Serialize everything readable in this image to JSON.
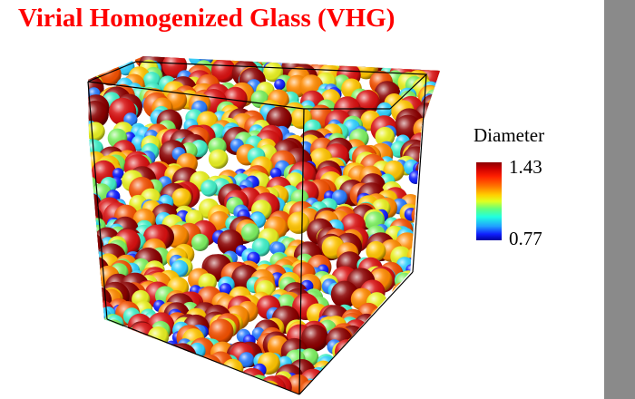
{
  "title": "Virial Homogenized Glass (VHG)",
  "legend": {
    "title": "Diameter",
    "max_label": "1.43",
    "min_label": "0.77",
    "gradient_colors": [
      "#8b0000",
      "#cc0000",
      "#ff2000",
      "#ff7000",
      "#ffd000",
      "#e0ff20",
      "#60ff80",
      "#20ffe0",
      "#20a0ff",
      "#1020ff",
      "#0000a0"
    ]
  },
  "colors": {
    "title": "#ff0000",
    "right_bar": "#8a8a8a",
    "background": "#ffffff",
    "cube_edges": "#000000"
  },
  "scene": {
    "object": "cube of packed spheres colored by diameter",
    "sphere_palette": [
      "#1020ff",
      "#2a7dff",
      "#30d0ff",
      "#40f0c8",
      "#7cf060",
      "#e8f020",
      "#ffc400",
      "#ff8a00",
      "#f25000",
      "#d81010",
      "#8b0000"
    ]
  }
}
